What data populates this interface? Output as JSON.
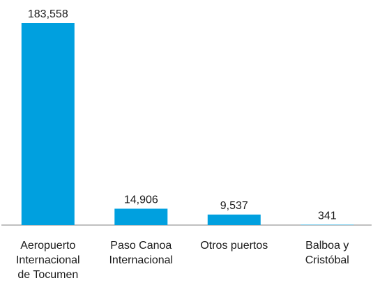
{
  "chart_data": {
    "type": "bar",
    "categories": [
      [
        "Aeropuerto",
        "Internacional",
        "de Tocumen"
      ],
      [
        "Paso Canoa",
        "Internacional"
      ],
      [
        "Otros puertos"
      ],
      [
        "Balboa y",
        "Cristóbal"
      ]
    ],
    "values": [
      183558,
      14906,
      9537,
      341
    ],
    "value_labels": [
      "183,558",
      "14,906",
      "9,537",
      "341"
    ],
    "bar_color": "#00a0df",
    "axis_color": "#808080",
    "grid": false,
    "legend": "none"
  }
}
